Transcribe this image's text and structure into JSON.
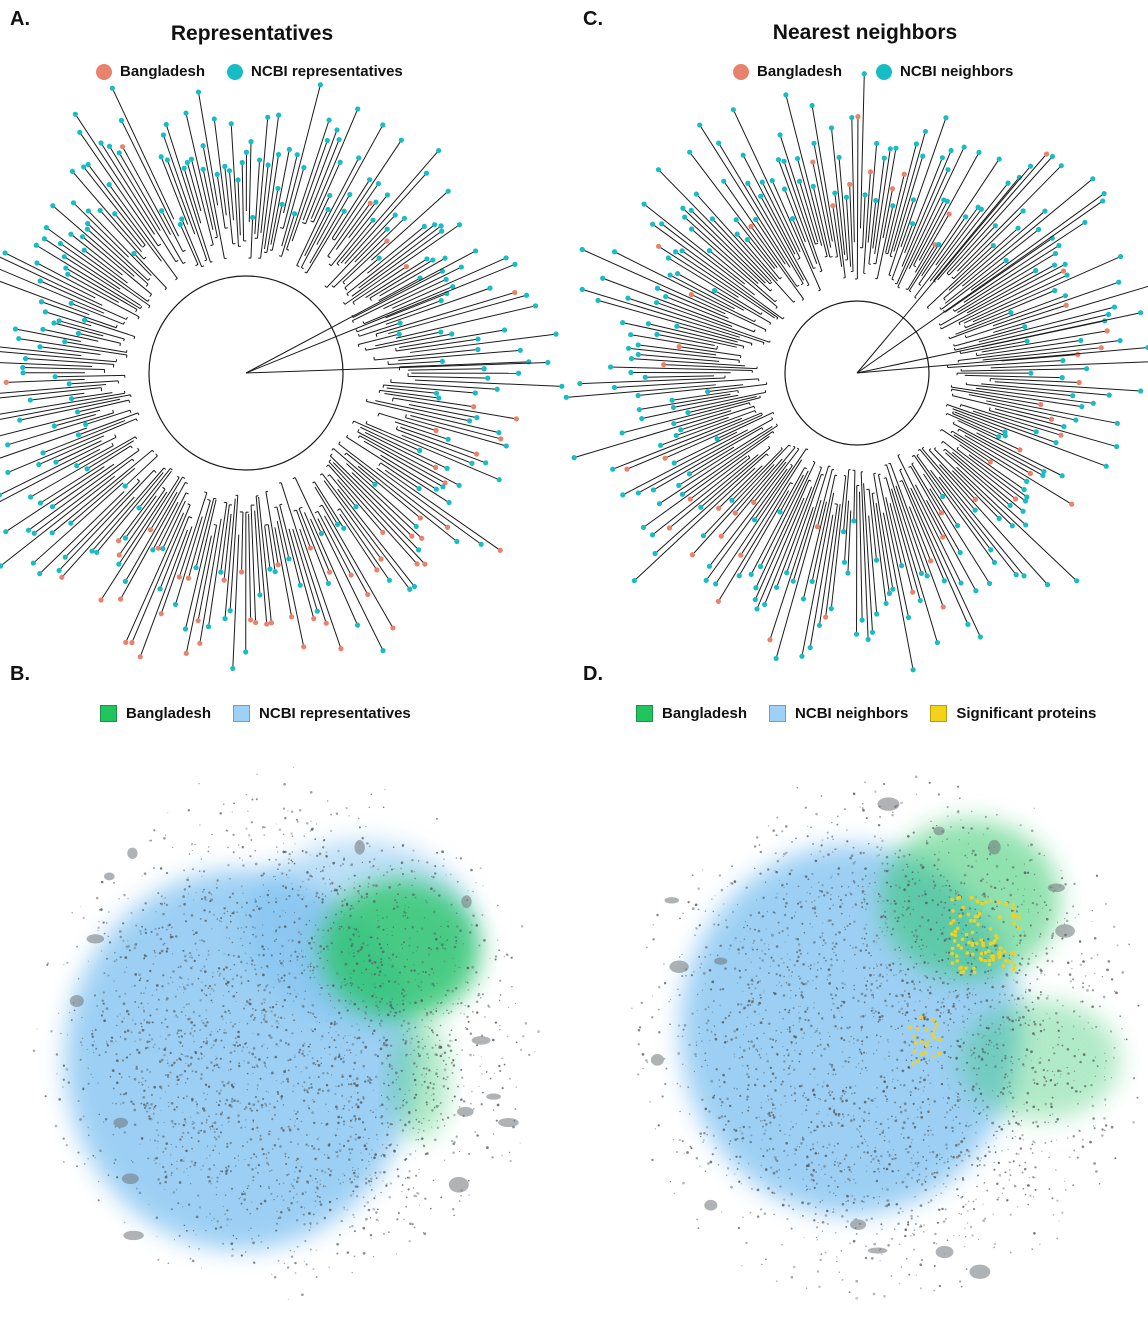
{
  "colors": {
    "bangladesh_tree": "#e8826c",
    "ncbi_tree": "#17bdc4",
    "bangladesh_network": "#22c45e",
    "ncbi_network": "#7cc0f0",
    "significant": "#f2d21a",
    "branch": "#1a1a1a",
    "network_node": "#555a5e"
  },
  "panels": {
    "A": {
      "letter": "A.",
      "title": "Representatives",
      "legend": [
        {
          "label": "Bangladesh",
          "swatch": "bangladesh_tree"
        },
        {
          "label": "NCBI representatives",
          "swatch": "ncbi_tree"
        }
      ]
    },
    "B": {
      "letter": "B.",
      "legend": [
        {
          "label": "Bangladesh",
          "swatch": "bangladesh_network"
        },
        {
          "label": "NCBI representatives",
          "swatch": "ncbi_network"
        }
      ]
    },
    "C": {
      "letter": "C.",
      "title": "Nearest neighbors",
      "legend": [
        {
          "label": "Bangladesh",
          "swatch": "bangladesh_tree"
        },
        {
          "label": "NCBI neighbors",
          "swatch": "ncbi_tree"
        }
      ]
    },
    "D": {
      "letter": "D.",
      "legend": [
        {
          "label": "Bangladesh",
          "swatch": "bangladesh_network"
        },
        {
          "label": "NCBI neighbors",
          "swatch": "ncbi_network"
        },
        {
          "label": "Significant proteins",
          "swatch": "significant"
        }
      ]
    }
  }
}
